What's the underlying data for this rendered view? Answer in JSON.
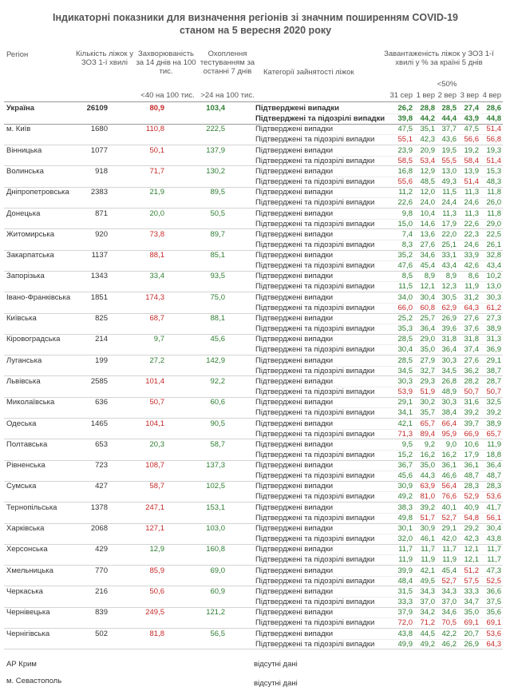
{
  "header": {
    "title": "Індикаторні показники для визначення регіонів зі значним поширенням COVID-19",
    "subtitle": "станом на 5 вересня 2020 року"
  },
  "columns": {
    "region": "Регіон",
    "beds": "Кількість ліжок у ЗОЗ 1-ї хвилі",
    "incidence": "Захворюваність за 14 днів на 100 тис.",
    "testing": "Охоплення тестуванням за останні 7 днів",
    "category": "Категорії зайнятості ліжок",
    "load": "Завантаженість ліжок у ЗОЗ 1-ї хвилі у % за країні 5 днів",
    "incidence_norm": "<40 на 100 тис.",
    "testing_norm": ">24 на 100 тис.",
    "load_norm": "<50%",
    "dates": [
      "31 сер",
      "1 вер",
      "2 вер",
      "3 вер",
      "4 вер"
    ]
  },
  "categories": [
    "Підтверджені випадки",
    "Підтверджені та підозрілі випадки"
  ],
  "rows": [
    {
      "region": "Україна",
      "beds": 26109,
      "incidence": "80,9",
      "testing": "103,4",
      "confirmed": [
        "26,2",
        "28,8",
        "28,5",
        "27,4",
        "28,6"
      ],
      "suspected": [
        "39,8",
        "44,2",
        "44,4",
        "43,9",
        "44,8"
      ]
    },
    {
      "region": "м. Київ",
      "beds": 1680,
      "incidence": "110,8",
      "testing": "222,5",
      "confirmed": [
        "47,5",
        "35,1",
        "37,7",
        "47,5",
        "51,4"
      ],
      "suspected": [
        "55,1",
        "42,3",
        "43,6",
        "56,6",
        "56,8"
      ]
    },
    {
      "region": "Вінницька",
      "beds": 1077,
      "incidence": "50,1",
      "testing": "137,9",
      "confirmed": [
        "23,9",
        "20,9",
        "19,5",
        "19,2",
        "19,3"
      ],
      "suspected": [
        "58,5",
        "53,4",
        "55,5",
        "58,4",
        "51,4"
      ]
    },
    {
      "region": "Волинська",
      "beds": 918,
      "incidence": "71,7",
      "testing": "130,2",
      "confirmed": [
        "16,8",
        "12,9",
        "13,0",
        "13,9",
        "15,3"
      ],
      "suspected": [
        "55,6",
        "48,5",
        "49,3",
        "51,4",
        "48,3"
      ]
    },
    {
      "region": "Дніпропетровська",
      "beds": 2383,
      "incidence": "21,9",
      "testing": "89,5",
      "confirmed": [
        "11,2",
        "12,0",
        "11,5",
        "11,3",
        "11,8"
      ],
      "suspected": [
        "22,6",
        "24,0",
        "24,4",
        "24,6",
        "26,0"
      ]
    },
    {
      "region": "Донецька",
      "beds": 871,
      "incidence": "20,0",
      "testing": "50,5",
      "confirmed": [
        "9,8",
        "10,4",
        "11,3",
        "11,3",
        "11,8"
      ],
      "suspected": [
        "15,0",
        "14,6",
        "17,9",
        "22,6",
        "29,0"
      ]
    },
    {
      "region": "Житомирська",
      "beds": 920,
      "incidence": "73,8",
      "testing": "89,7",
      "confirmed": [
        "7,4",
        "13,6",
        "22,0",
        "22,3",
        "22,5"
      ],
      "suspected": [
        "8,3",
        "27,6",
        "25,1",
        "24,6",
        "26,1"
      ]
    },
    {
      "region": "Закарпатська",
      "beds": 1137,
      "incidence": "88,1",
      "testing": "85,1",
      "confirmed": [
        "35,2",
        "34,6",
        "33,1",
        "33,9",
        "32,8"
      ],
      "suspected": [
        "47,6",
        "45,4",
        "43,4",
        "42,6",
        "43,4"
      ]
    },
    {
      "region": "Запорізька",
      "beds": 1343,
      "incidence": "33,4",
      "testing": "93,5",
      "confirmed": [
        "8,5",
        "8,9",
        "8,9",
        "8,6",
        "10,2"
      ],
      "suspected": [
        "11,5",
        "12,1",
        "12,3",
        "11,9",
        "13,0"
      ]
    },
    {
      "region": "Івано-Франківська",
      "beds": 1851,
      "incidence": "174,3",
      "testing": "75,0",
      "confirmed": [
        "34,0",
        "30,4",
        "30,5",
        "31,2",
        "30,3"
      ],
      "suspected": [
        "66,0",
        "60,8",
        "62,9",
        "64,3",
        "61,2"
      ]
    },
    {
      "region": "Київська",
      "beds": 825,
      "incidence": "68,7",
      "testing": "88,1",
      "confirmed": [
        "25,2",
        "25,7",
        "26,9",
        "27,6",
        "27,3"
      ],
      "suspected": [
        "35,3",
        "36,4",
        "39,6",
        "37,6",
        "38,9"
      ]
    },
    {
      "region": "Кіровоградська",
      "beds": 214,
      "incidence": "9,7",
      "testing": "45,6",
      "confirmed": [
        "28,5",
        "29,0",
        "31,8",
        "31,8",
        "31,3"
      ],
      "suspected": [
        "30,4",
        "35,0",
        "36,4",
        "37,4",
        "36,9"
      ]
    },
    {
      "region": "Луганська",
      "beds": 199,
      "incidence": "27,2",
      "testing": "142,9",
      "confirmed": [
        "28,5",
        "27,9",
        "30,3",
        "27,6",
        "29,1"
      ],
      "suspected": [
        "34,5",
        "32,7",
        "34,5",
        "36,2",
        "38,7"
      ]
    },
    {
      "region": "Львівська",
      "beds": 2585,
      "incidence": "101,4",
      "testing": "92,2",
      "confirmed": [
        "30,3",
        "29,3",
        "26,8",
        "28,2",
        "28,7"
      ],
      "suspected": [
        "53,9",
        "51,9",
        "48,9",
        "50,7",
        "50,7"
      ]
    },
    {
      "region": "Миколаївська",
      "beds": 636,
      "incidence": "50,7",
      "testing": "60,6",
      "confirmed": [
        "29,1",
        "30,2",
        "30,3",
        "31,6",
        "32,5"
      ],
      "suspected": [
        "34,1",
        "35,7",
        "38,4",
        "39,2",
        "39,2"
      ]
    },
    {
      "region": "Одеська",
      "beds": 1465,
      "incidence": "104,1",
      "testing": "90,5",
      "confirmed": [
        "42,1",
        "65,7",
        "66,4",
        "39,7",
        "38,9"
      ],
      "suspected": [
        "71,3",
        "89,4",
        "95,9",
        "66,9",
        "65,7"
      ]
    },
    {
      "region": "Полтавська",
      "beds": 653,
      "incidence": "20,3",
      "testing": "58,7",
      "confirmed": [
        "9,5",
        "9,2",
        "9,0",
        "10,6",
        "11,9"
      ],
      "suspected": [
        "15,2",
        "16,2",
        "16,2",
        "17,9",
        "18,8"
      ]
    },
    {
      "region": "Рівненська",
      "beds": 723,
      "incidence": "108,7",
      "testing": "137,3",
      "confirmed": [
        "36,7",
        "35,0",
        "36,1",
        "36,1",
        "36,4"
      ],
      "suspected": [
        "45,6",
        "44,3",
        "46,6",
        "48,7",
        "48,7"
      ]
    },
    {
      "region": "Сумська",
      "beds": 427,
      "incidence": "58,7",
      "testing": "102,5",
      "confirmed": [
        "30,9",
        "63,9",
        "56,4",
        "28,3",
        "28,3"
      ],
      "suspected": [
        "49,2",
        "81,0",
        "76,6",
        "52,9",
        "53,6"
      ]
    },
    {
      "region": "Тернопільська",
      "beds": 1378,
      "incidence": "247,1",
      "testing": "153,1",
      "confirmed": [
        "38,3",
        "39,2",
        "40,1",
        "40,9",
        "41,7"
      ],
      "suspected": [
        "49,8",
        "51,7",
        "52,7",
        "54,8",
        "56,1"
      ]
    },
    {
      "region": "Харківська",
      "beds": 2068,
      "incidence": "127,1",
      "testing": "103,0",
      "confirmed": [
        "30,1",
        "30,9",
        "29,1",
        "29,2",
        "30,4"
      ],
      "suspected": [
        "32,0",
        "46,1",
        "42,0",
        "42,3",
        "43,8"
      ]
    },
    {
      "region": "Херсонська",
      "beds": 429,
      "incidence": "12,9",
      "testing": "160,8",
      "confirmed": [
        "11,7",
        "11,7",
        "11,7",
        "12,1",
        "11,7"
      ],
      "suspected": [
        "11,9",
        "11,9",
        "11,9",
        "12,1",
        "11,7"
      ]
    },
    {
      "region": "Хмельницька",
      "beds": 770,
      "incidence": "85,9",
      "testing": "69,0",
      "confirmed": [
        "39,9",
        "42,1",
        "45,4",
        "51,2",
        "47,3"
      ],
      "suspected": [
        "48,4",
        "49,5",
        "52,7",
        "57,5",
        "52,5"
      ]
    },
    {
      "region": "Черкаська",
      "beds": 216,
      "incidence": "50,6",
      "testing": "60,9",
      "confirmed": [
        "31,5",
        "34,3",
        "34,3",
        "33,3",
        "36,6"
      ],
      "suspected": [
        "33,3",
        "37,0",
        "37,0",
        "34,7",
        "37,5"
      ]
    },
    {
      "region": "Чернівецька",
      "beds": 839,
      "incidence": "249,5",
      "testing": "121,2",
      "confirmed": [
        "37,9",
        "34,2",
        "34,6",
        "35,0",
        "35,6"
      ],
      "suspected": [
        "72,0",
        "71,2",
        "70,5",
        "69,1",
        "69,1"
      ]
    },
    {
      "region": "Чернігівська",
      "beds": 502,
      "incidence": "81,8",
      "testing": "56,5",
      "confirmed": [
        "43,8",
        "44,5",
        "42,2",
        "20,7",
        "53,6"
      ],
      "suspected": [
        "49,9",
        "49,2",
        "46,2",
        "26,9",
        "64,3"
      ]
    }
  ],
  "missing": [
    {
      "region": "АР Крим",
      "note": "відсутні дані"
    },
    {
      "region": "м. Севастополь",
      "note": "відсутні дані"
    }
  ]
}
